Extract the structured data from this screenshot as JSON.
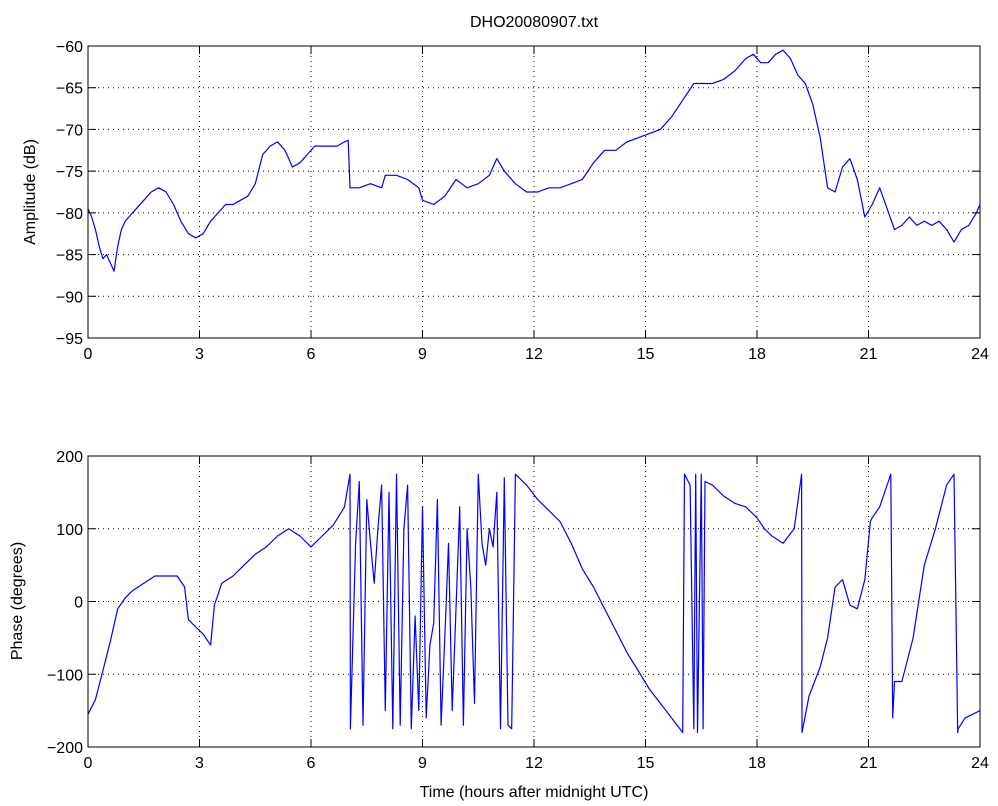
{
  "chart_data": [
    {
      "type": "line",
      "title": "DHO20080907.txt",
      "xlabel": "",
      "ylabel": "Amplitude (dB)",
      "xlim": [
        0,
        24
      ],
      "ylim": [
        -95,
        -60
      ],
      "xticks": [
        0,
        3,
        6,
        9,
        12,
        15,
        18,
        21,
        24
      ],
      "yticks": [
        -95,
        -90,
        -85,
        -80,
        -75,
        -70,
        -65,
        -60
      ],
      "grid": true,
      "line_color": "#0000ff",
      "series": [
        {
          "x": [
            0,
            0.1,
            0.2,
            0.3,
            0.4,
            0.5,
            0.6,
            0.7,
            0.8,
            0.9,
            1.0,
            1.1,
            1.2,
            1.3,
            1.5,
            1.7,
            1.9,
            2.1,
            2.3,
            2.5,
            2.7,
            2.9,
            3.1,
            3.3,
            3.5,
            3.7,
            3.9,
            4.1,
            4.3,
            4.5,
            4.7,
            4.9,
            5.1,
            5.3,
            5.5,
            5.7,
            5.9,
            6.1,
            6.3,
            6.5,
            6.7,
            6.9,
            7.0,
            7.05,
            7.3,
            7.6,
            7.9,
            8.0,
            8.3,
            8.6,
            8.9,
            9.0,
            9.3,
            9.6,
            9.9,
            10.2,
            10.5,
            10.8,
            11.0,
            11.2,
            11.5,
            11.8,
            12.1,
            12.4,
            12.7,
            13.0,
            13.3,
            13.6,
            13.9,
            14.2,
            14.5,
            14.8,
            15.1,
            15.4,
            15.7,
            16.0,
            16.3,
            16.5,
            16.8,
            17.1,
            17.4,
            17.7,
            17.9,
            18.1,
            18.3,
            18.5,
            18.7,
            18.9,
            19.1,
            19.3,
            19.5,
            19.7,
            19.9,
            20.1,
            20.3,
            20.5,
            20.7,
            20.9,
            21.1,
            21.3,
            21.5,
            21.7,
            21.9,
            22.1,
            22.3,
            22.5,
            22.7,
            22.9,
            23.1,
            23.3,
            23.5,
            23.7,
            23.9,
            24.0
          ],
          "y": [
            -79.5,
            -80.5,
            -82,
            -84,
            -85.5,
            -85,
            -86,
            -87,
            -84,
            -82,
            -81,
            -80.5,
            -80,
            -79.5,
            -78.5,
            -77.5,
            -77,
            -77.5,
            -79,
            -81,
            -82.5,
            -83,
            -82.5,
            -81,
            -80,
            -79,
            -79,
            -78.5,
            -78,
            -76.5,
            -73,
            -72,
            -71.5,
            -72.5,
            -74.5,
            -74,
            -73,
            -72,
            -72,
            -72,
            -72,
            -71.5,
            -71.3,
            -77,
            -77,
            -76.5,
            -77,
            -75.5,
            -75.5,
            -76,
            -77,
            -78.5,
            -79,
            -78,
            -76,
            -77,
            -76.5,
            -75.5,
            -73.5,
            -75,
            -76.5,
            -77.5,
            -77.5,
            -77,
            -77,
            -76.5,
            -76,
            -74,
            -72.5,
            -72.5,
            -71.5,
            -71,
            -70.5,
            -70,
            -68.5,
            -66.5,
            -64.5,
            -64.5,
            -64.5,
            -64,
            -63,
            -61.5,
            -61,
            -62,
            -62,
            -61,
            -60.5,
            -61.5,
            -63.5,
            -64.5,
            -67,
            -71,
            -77,
            -77.5,
            -74.5,
            -73.5,
            -76,
            -80.5,
            -79,
            -77,
            -79.5,
            -82,
            -81.5,
            -80.5,
            -81.5,
            -81,
            -81.5,
            -81,
            -82,
            -83.5,
            -82,
            -81.5,
            -80,
            -79
          ]
        }
      ]
    },
    {
      "type": "line",
      "title": "",
      "xlabel": "Time (hours after midnight UTC)",
      "ylabel": "Phase (degrees)",
      "xlim": [
        0,
        24
      ],
      "ylim": [
        -200,
        200
      ],
      "xticks": [
        0,
        3,
        6,
        9,
        12,
        15,
        18,
        21,
        24
      ],
      "yticks": [
        -200,
        -100,
        0,
        100,
        200
      ],
      "grid": true,
      "line_color": "#0000ff",
      "series": [
        {
          "x": [
            0,
            0.2,
            0.4,
            0.6,
            0.8,
            1.0,
            1.2,
            1.5,
            1.8,
            2.1,
            2.4,
            2.6,
            2.7,
            2.9,
            3.1,
            3.3,
            3.4,
            3.6,
            3.9,
            4.2,
            4.5,
            4.8,
            5.1,
            5.4,
            5.7,
            6.0,
            6.3,
            6.6,
            6.9,
            7.05,
            7.06,
            7.2,
            7.3,
            7.4,
            7.5,
            7.6,
            7.7,
            7.8,
            7.9,
            8.0,
            8.1,
            8.2,
            8.3,
            8.4,
            8.5,
            8.6,
            8.7,
            8.8,
            8.9,
            9.0,
            9.1,
            9.2,
            9.3,
            9.4,
            9.5,
            9.6,
            9.7,
            9.8,
            9.9,
            10.0,
            10.1,
            10.2,
            10.3,
            10.4,
            10.5,
            10.6,
            10.7,
            10.8,
            10.9,
            11.0,
            11.1,
            11.2,
            11.3,
            11.4,
            11.5,
            11.6,
            11.8,
            12.1,
            12.4,
            12.7,
            13.0,
            13.3,
            13.6,
            13.9,
            14.2,
            14.5,
            14.8,
            15.1,
            15.4,
            15.7,
            16.0,
            16.05,
            16.2,
            16.3,
            16.35,
            16.4,
            16.5,
            16.55,
            16.6,
            16.8,
            17.1,
            17.4,
            17.7,
            18.0,
            18.2,
            18.4,
            18.7,
            19.0,
            19.2,
            19.21,
            19.4,
            19.7,
            19.9,
            20.1,
            20.3,
            20.5,
            20.7,
            20.9,
            21.05,
            21.1,
            21.3,
            21.6,
            21.65,
            21.7,
            21.9,
            22.2,
            22.5,
            22.8,
            23.1,
            23.3,
            23.4,
            23.41,
            23.6,
            23.8,
            24.0
          ],
          "y": [
            -155,
            -135,
            -95,
            -55,
            -10,
            5,
            15,
            25,
            35,
            35,
            35,
            20,
            -25,
            -35,
            -45,
            -60,
            -5,
            25,
            35,
            50,
            65,
            75,
            90,
            100,
            90,
            75,
            90,
            105,
            130,
            175,
            -175,
            80,
            165,
            -170,
            140,
            80,
            25,
            100,
            160,
            -150,
            150,
            -175,
            175,
            -170,
            100,
            160,
            -175,
            -20,
            -150,
            130,
            -160,
            -60,
            -30,
            140,
            -170,
            -50,
            80,
            -150,
            -10,
            130,
            -170,
            100,
            20,
            -140,
            175,
            80,
            50,
            100,
            75,
            150,
            -175,
            170,
            -170,
            -175,
            175,
            170,
            160,
            140,
            125,
            110,
            80,
            45,
            20,
            -10,
            -40,
            -70,
            -95,
            -120,
            -140,
            -160,
            -180,
            175,
            160,
            -175,
            175,
            -180,
            175,
            -175,
            165,
            160,
            145,
            135,
            130,
            115,
            100,
            90,
            80,
            100,
            175,
            -180,
            -130,
            -90,
            -50,
            20,
            30,
            -5,
            -10,
            30,
            110,
            115,
            130,
            175,
            -160,
            -110,
            -110,
            -50,
            50,
            100,
            160,
            175,
            -180,
            -175,
            -160,
            -155,
            -150
          ]
        }
      ]
    }
  ]
}
